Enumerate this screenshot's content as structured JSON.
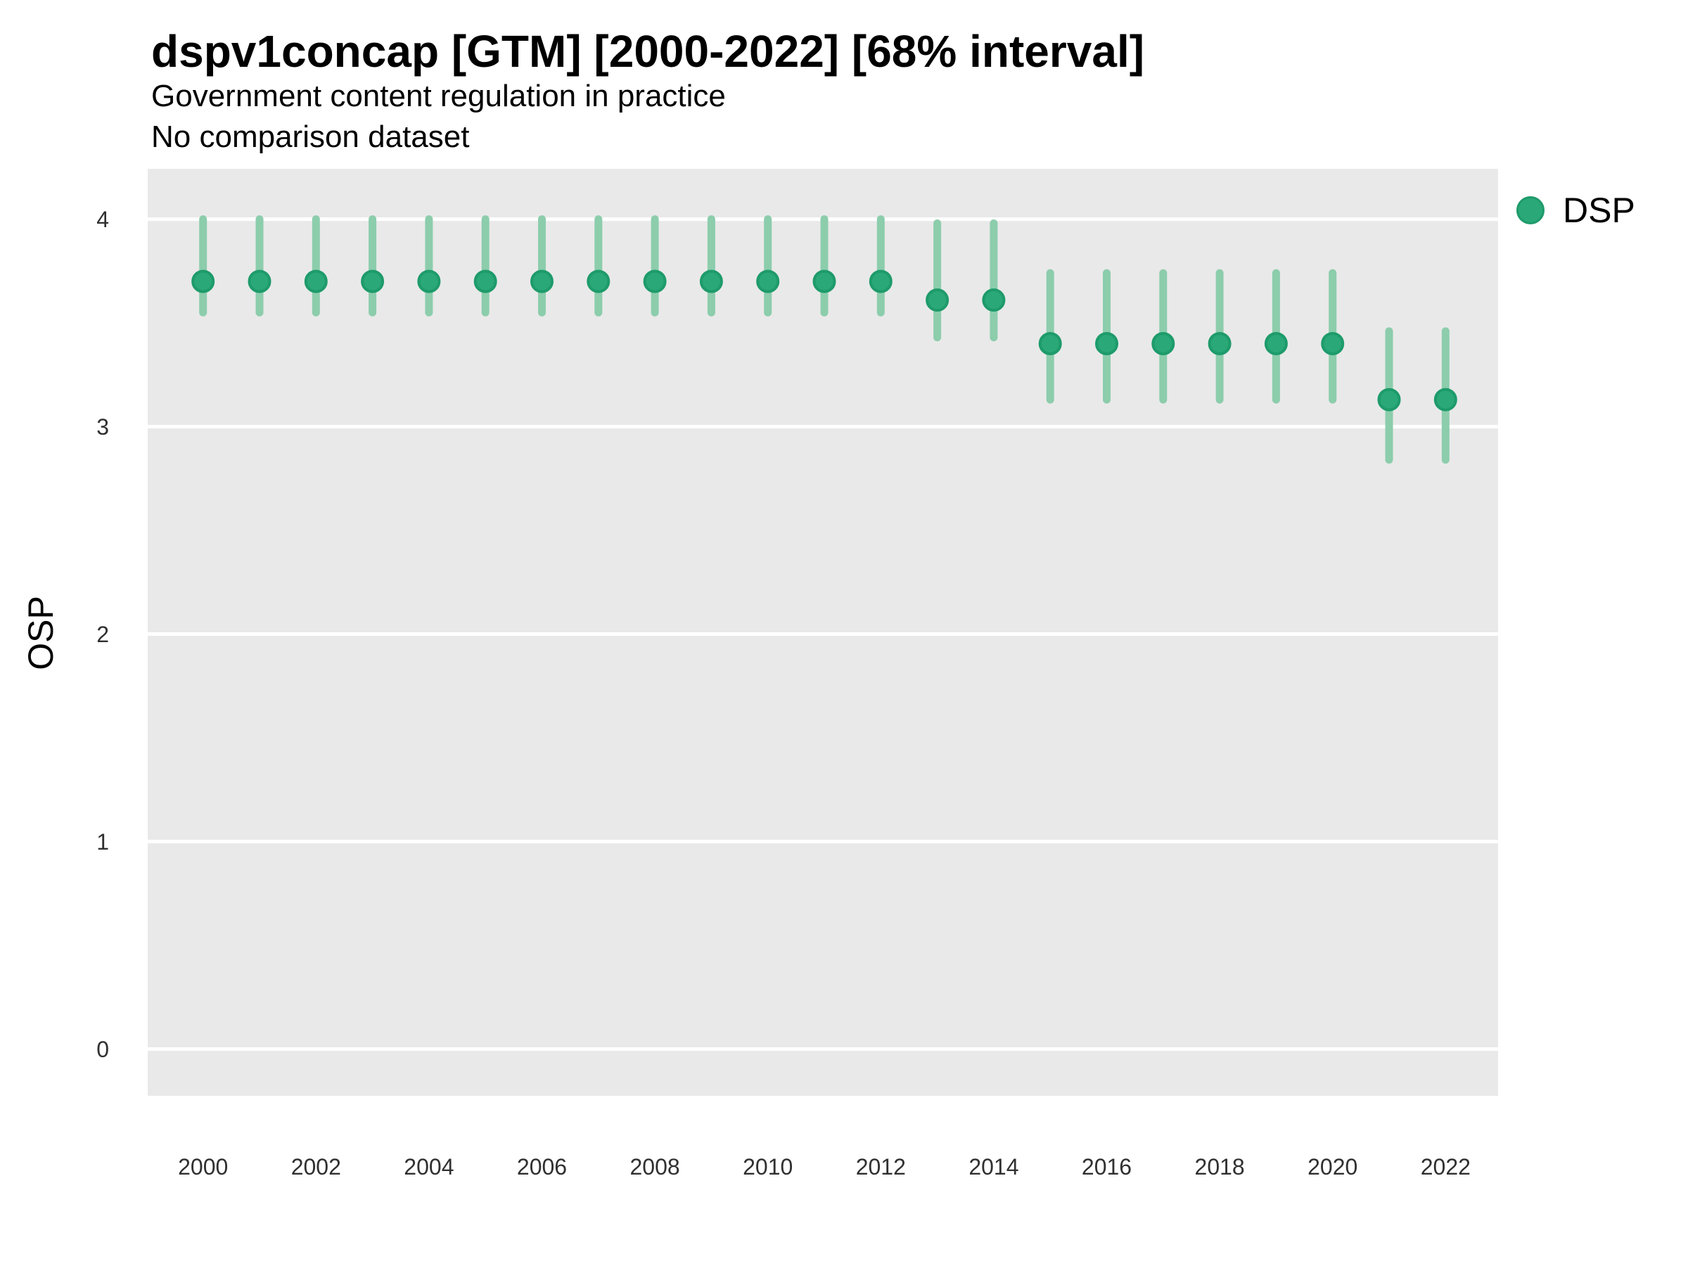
{
  "header": {
    "title": "dspv1concap [GTM] [2000-2022] [68% interval]",
    "subtitle_line1": "Government content regulation in practice",
    "subtitle_line2": "No comparison dataset"
  },
  "legend": {
    "label": "DSP",
    "position": "right"
  },
  "axes": {
    "y_title": "OSP",
    "y_ticks": [
      0,
      1,
      2,
      3,
      4
    ],
    "x_ticks": [
      2000,
      2002,
      2004,
      2006,
      2008,
      2010,
      2012,
      2014,
      2016,
      2018,
      2020,
      2022
    ]
  },
  "colors": {
    "point_fill": "#2AA878",
    "point_stroke": "#1E9B6B",
    "interval_bar": "#8CCDAC",
    "panel_background": "#E9E9E9",
    "gridline": "#FFFFFF",
    "tick_text": "#303030",
    "text": "#000000"
  },
  "chart_data": {
    "type": "scatter",
    "title": "dspv1concap [GTM] [2000-2022] [68% interval]",
    "subtitle": "Government content regulation in practice",
    "note": "No comparison dataset",
    "interval": "68%",
    "xlabel": "",
    "ylabel": "OSP",
    "xlim": [
      1999.02,
      2022.93
    ],
    "ylim": [
      -0.2254,
      4.2427
    ],
    "y_ticks": [
      0,
      1,
      2,
      3,
      4
    ],
    "x_ticks": [
      2000,
      2002,
      2004,
      2006,
      2008,
      2010,
      2012,
      2014,
      2016,
      2018,
      2020,
      2022
    ],
    "grid": "major horizontal white lines on grey panel",
    "legend_position": "right",
    "series": [
      {
        "name": "DSP",
        "points": [
          {
            "year": 2000,
            "value": 3.7,
            "lo": 3.55,
            "hi": 4.0
          },
          {
            "year": 2001,
            "value": 3.7,
            "lo": 3.55,
            "hi": 4.0
          },
          {
            "year": 2002,
            "value": 3.7,
            "lo": 3.55,
            "hi": 4.0
          },
          {
            "year": 2003,
            "value": 3.7,
            "lo": 3.55,
            "hi": 4.0
          },
          {
            "year": 2004,
            "value": 3.7,
            "lo": 3.55,
            "hi": 4.0
          },
          {
            "year": 2005,
            "value": 3.7,
            "lo": 3.55,
            "hi": 4.0
          },
          {
            "year": 2006,
            "value": 3.7,
            "lo": 3.55,
            "hi": 4.0
          },
          {
            "year": 2007,
            "value": 3.7,
            "lo": 3.55,
            "hi": 4.0
          },
          {
            "year": 2008,
            "value": 3.7,
            "lo": 3.55,
            "hi": 4.0
          },
          {
            "year": 2009,
            "value": 3.7,
            "lo": 3.55,
            "hi": 4.0
          },
          {
            "year": 2010,
            "value": 3.7,
            "lo": 3.55,
            "hi": 4.0
          },
          {
            "year": 2011,
            "value": 3.7,
            "lo": 3.55,
            "hi": 4.0
          },
          {
            "year": 2012,
            "value": 3.7,
            "lo": 3.55,
            "hi": 4.0
          },
          {
            "year": 2013,
            "value": 3.61,
            "lo": 3.43,
            "hi": 3.98
          },
          {
            "year": 2014,
            "value": 3.61,
            "lo": 3.43,
            "hi": 3.98
          },
          {
            "year": 2015,
            "value": 3.4,
            "lo": 3.13,
            "hi": 3.74
          },
          {
            "year": 2016,
            "value": 3.4,
            "lo": 3.13,
            "hi": 3.74
          },
          {
            "year": 2017,
            "value": 3.4,
            "lo": 3.13,
            "hi": 3.74
          },
          {
            "year": 2018,
            "value": 3.4,
            "lo": 3.13,
            "hi": 3.74
          },
          {
            "year": 2019,
            "value": 3.4,
            "lo": 3.13,
            "hi": 3.74
          },
          {
            "year": 2020,
            "value": 3.4,
            "lo": 3.13,
            "hi": 3.74
          },
          {
            "year": 2021,
            "value": 3.13,
            "lo": 2.84,
            "hi": 3.46
          },
          {
            "year": 2022,
            "value": 3.13,
            "lo": 2.84,
            "hi": 3.46
          }
        ]
      }
    ]
  }
}
